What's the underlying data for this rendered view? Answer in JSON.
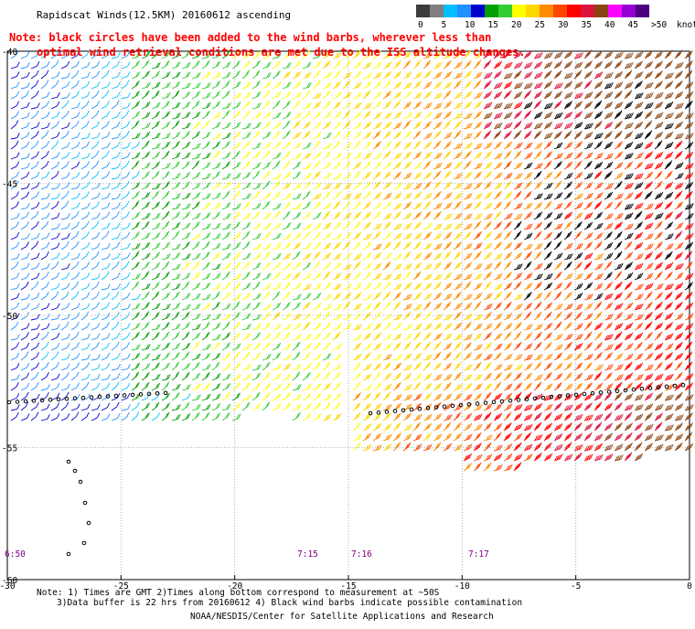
{
  "title": "Rapidscat Winds(12.5KM) 20160612 ascending",
  "note_line1": "Note: black circles have been added to the wind barbs, wherever less than",
  "note_line2": "optimal wind retrieval conditions are met due to the ISS altitude changes.",
  "legend": {
    "labels": [
      "0",
      "5",
      "10",
      "15",
      "20",
      "25",
      "30",
      "35",
      "40",
      "45",
      ">50",
      "knots"
    ],
    "colors": [
      "#3c3c3c",
      "#7f7f7f",
      "#00bfff",
      "#1e90ff",
      "#0000cd",
      "#00a000",
      "#32cd32",
      "#ffff00",
      "#ffd700",
      "#ff8c00",
      "#ff4500",
      "#ff0000",
      "#dc143c",
      "#8b4513",
      "#ff00ff",
      "#9400d3",
      "#4b0082"
    ]
  },
  "lat_labels": [
    "-40",
    "-45",
    "-50",
    "-55",
    "-60"
  ],
  "lon_labels": [
    "-30",
    "-25",
    "-20",
    "-15",
    "-10",
    "-5",
    "0"
  ],
  "times": [
    "6:50",
    "7:15",
    "7:16",
    "7:17"
  ],
  "footer_line1": "Note: 1) Times are GMT 2)Times along bottom correspond to measurement at ~50S",
  "footer_line2": "3)Data buffer is 22 hrs from 20160612 4) Black wind barbs indicate possible contamination",
  "credit": "NOAA/NESDIS/Center for Satellite Applications and Research",
  "colors": {
    "note": "#ff0000",
    "time": "#800080",
    "grid": "#a0a0a0"
  }
}
